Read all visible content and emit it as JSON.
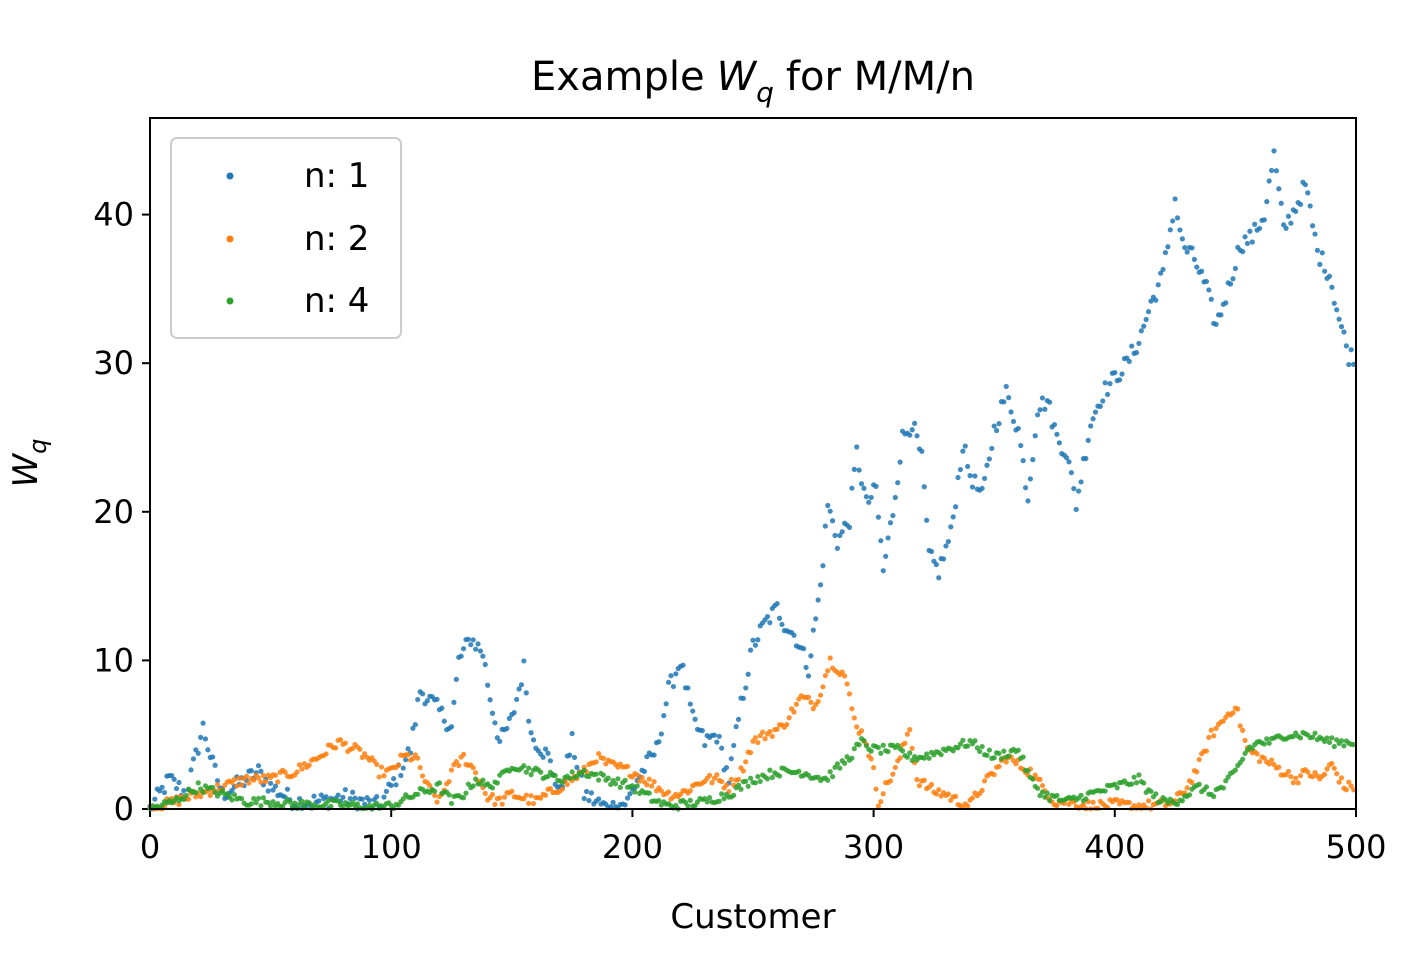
{
  "chart_data": {
    "type": "scatter",
    "title_prefix": "Example",
    "title_var": "W",
    "title_sub": "q",
    "title_suffix": "for M/M/n",
    "xlabel": "Customer",
    "ylabel_var": "W",
    "ylabel_sub": "q",
    "xlim": [
      0,
      500
    ],
    "ylim": [
      0,
      46.5
    ],
    "xticks": [
      0,
      100,
      200,
      300,
      400,
      500
    ],
    "yticks": [
      0,
      10,
      20,
      30,
      40
    ],
    "grid": false,
    "legend_position": "top-left",
    "series": [
      {
        "name": "n: 1",
        "color": "#1f77b4",
        "anchors": [
          [
            0,
            0
          ],
          [
            8,
            2
          ],
          [
            15,
            1
          ],
          [
            22,
            5.5
          ],
          [
            26,
            3
          ],
          [
            30,
            1
          ],
          [
            40,
            2
          ],
          [
            45,
            2.5
          ],
          [
            50,
            1.5
          ],
          [
            60,
            0.5
          ],
          [
            70,
            0.5
          ],
          [
            80,
            0.8
          ],
          [
            95,
            0.2
          ],
          [
            100,
            1.5
          ],
          [
            108,
            4
          ],
          [
            112,
            8
          ],
          [
            118,
            7
          ],
          [
            125,
            5.5
          ],
          [
            128,
            10
          ],
          [
            133,
            11.5
          ],
          [
            138,
            10.5
          ],
          [
            141,
            7.5
          ],
          [
            145,
            4.5
          ],
          [
            150,
            6
          ],
          [
            155,
            9.5
          ],
          [
            158,
            5
          ],
          [
            165,
            3.5
          ],
          [
            170,
            1
          ],
          [
            175,
            4.5
          ],
          [
            180,
            1
          ],
          [
            190,
            0
          ],
          [
            198,
            0.5
          ],
          [
            202,
            2
          ],
          [
            210,
            4
          ],
          [
            215,
            8
          ],
          [
            220,
            10
          ],
          [
            225,
            6
          ],
          [
            230,
            4.5
          ],
          [
            235,
            5
          ],
          [
            240,
            2
          ],
          [
            245,
            7
          ],
          [
            250,
            11
          ],
          [
            255,
            12.5
          ],
          [
            260,
            13.5
          ],
          [
            263,
            12.5
          ],
          [
            268,
            11.5
          ],
          [
            273,
            9.5
          ],
          [
            278,
            15
          ],
          [
            281,
            20.5
          ],
          [
            285,
            18
          ],
          [
            290,
            19.5
          ],
          [
            293,
            24
          ],
          [
            297,
            20.5
          ],
          [
            301,
            21.5
          ],
          [
            304,
            16
          ],
          [
            308,
            20
          ],
          [
            312,
            25
          ],
          [
            316,
            26
          ],
          [
            320,
            23.5
          ],
          [
            323,
            17
          ],
          [
            327,
            16
          ],
          [
            332,
            18.5
          ],
          [
            337,
            24.5
          ],
          [
            340,
            22.5
          ],
          [
            345,
            21
          ],
          [
            350,
            25.5
          ],
          [
            355,
            28
          ],
          [
            360,
            25.5
          ],
          [
            364,
            21
          ],
          [
            368,
            27
          ],
          [
            372,
            27.5
          ],
          [
            376,
            25
          ],
          [
            380,
            24
          ],
          [
            384,
            20.5
          ],
          [
            390,
            26
          ],
          [
            395,
            28
          ],
          [
            400,
            29
          ],
          [
            405,
            30
          ],
          [
            410,
            31.5
          ],
          [
            415,
            34
          ],
          [
            420,
            36
          ],
          [
            425,
            41
          ],
          [
            428,
            38
          ],
          [
            433,
            37
          ],
          [
            438,
            35
          ],
          [
            442,
            32.5
          ],
          [
            447,
            35
          ],
          [
            452,
            38
          ],
          [
            457,
            38.5
          ],
          [
            462,
            40
          ],
          [
            466,
            44
          ],
          [
            470,
            39
          ],
          [
            475,
            40.5
          ],
          [
            479,
            42
          ],
          [
            484,
            37.5
          ],
          [
            489,
            36
          ],
          [
            493,
            33
          ],
          [
            497,
            30.5
          ],
          [
            500,
            30.5
          ]
        ],
        "spread": 0.6
      },
      {
        "name": "n: 2",
        "color": "#ff7f0e",
        "anchors": [
          [
            0,
            0
          ],
          [
            10,
            0.5
          ],
          [
            20,
            1
          ],
          [
            30,
            1.5
          ],
          [
            40,
            2
          ],
          [
            50,
            2
          ],
          [
            60,
            2.5
          ],
          [
            70,
            3.5
          ],
          [
            78,
            4.5
          ],
          [
            85,
            4
          ],
          [
            90,
            3.5
          ],
          [
            95,
            2.5
          ],
          [
            100,
            2.5
          ],
          [
            105,
            3.5
          ],
          [
            110,
            3.5
          ],
          [
            115,
            1.5
          ],
          [
            120,
            0.5
          ],
          [
            125,
            2.5
          ],
          [
            130,
            3.5
          ],
          [
            135,
            2.5
          ],
          [
            140,
            0.8
          ],
          [
            145,
            0.5
          ],
          [
            150,
            1
          ],
          [
            160,
            0.5
          ],
          [
            170,
            1.5
          ],
          [
            180,
            2.5
          ],
          [
            185,
            3.5
          ],
          [
            190,
            3
          ],
          [
            200,
            2.5
          ],
          [
            205,
            2
          ],
          [
            210,
            1.5
          ],
          [
            215,
            1
          ],
          [
            220,
            1
          ],
          [
            225,
            1.5
          ],
          [
            230,
            2
          ],
          [
            235,
            2
          ],
          [
            240,
            1.5
          ],
          [
            245,
            2.5
          ],
          [
            250,
            4.5
          ],
          [
            255,
            5
          ],
          [
            262,
            5.5
          ],
          [
            270,
            7.5
          ],
          [
            276,
            7
          ],
          [
            282,
            10
          ],
          [
            288,
            9
          ],
          [
            292,
            6
          ],
          [
            297,
            4.5
          ],
          [
            300,
            2.5
          ],
          [
            302,
            0.5
          ],
          [
            305,
            1.5
          ],
          [
            310,
            3
          ],
          [
            315,
            5.5
          ],
          [
            318,
            2
          ],
          [
            325,
            1.2
          ],
          [
            330,
            1
          ],
          [
            335,
            0.5
          ],
          [
            340,
            0.3
          ],
          [
            345,
            1.5
          ],
          [
            350,
            2.5
          ],
          [
            355,
            3.5
          ],
          [
            360,
            3
          ],
          [
            365,
            2.5
          ],
          [
            370,
            1.5
          ],
          [
            375,
            0.5
          ],
          [
            380,
            0.5
          ],
          [
            390,
            0.2
          ],
          [
            400,
            0.3
          ],
          [
            410,
            0.2
          ],
          [
            420,
            0.3
          ],
          [
            425,
            0.5
          ],
          [
            430,
            1.5
          ],
          [
            435,
            3
          ],
          [
            440,
            5
          ],
          [
            445,
            6
          ],
          [
            450,
            7
          ],
          [
            455,
            4
          ],
          [
            460,
            3.5
          ],
          [
            465,
            3
          ],
          [
            470,
            2.5
          ],
          [
            475,
            2
          ],
          [
            480,
            2.5
          ],
          [
            485,
            2
          ],
          [
            490,
            3
          ],
          [
            495,
            1.5
          ],
          [
            500,
            1.5
          ]
        ],
        "spread": 0.35
      },
      {
        "name": "n: 4",
        "color": "#2ca02c",
        "anchors": [
          [
            0,
            0
          ],
          [
            10,
            0.5
          ],
          [
            20,
            1.5
          ],
          [
            30,
            1
          ],
          [
            40,
            0.5
          ],
          [
            50,
            0.5
          ],
          [
            60,
            0.3
          ],
          [
            70,
            0.3
          ],
          [
            80,
            0.3
          ],
          [
            90,
            0.1
          ],
          [
            100,
            0.2
          ],
          [
            110,
            1
          ],
          [
            120,
            1.5
          ],
          [
            125,
            0.5
          ],
          [
            130,
            1
          ],
          [
            135,
            2
          ],
          [
            140,
            1.5
          ],
          [
            145,
            2
          ],
          [
            150,
            3
          ],
          [
            160,
            2.5
          ],
          [
            170,
            2
          ],
          [
            180,
            2.5
          ],
          [
            190,
            2
          ],
          [
            200,
            1.5
          ],
          [
            205,
            1
          ],
          [
            210,
            0.5
          ],
          [
            215,
            0.2
          ],
          [
            220,
            0.3
          ],
          [
            230,
            0.5
          ],
          [
            240,
            1
          ],
          [
            250,
            2
          ],
          [
            260,
            2.5
          ],
          [
            270,
            2.5
          ],
          [
            280,
            2
          ],
          [
            290,
            3.5
          ],
          [
            295,
            4.5
          ],
          [
            300,
            4
          ],
          [
            310,
            4
          ],
          [
            315,
            3.5
          ],
          [
            320,
            3.5
          ],
          [
            330,
            4
          ],
          [
            340,
            4.5
          ],
          [
            350,
            3.5
          ],
          [
            360,
            4
          ],
          [
            365,
            2
          ],
          [
            370,
            1
          ],
          [
            380,
            0.5
          ],
          [
            390,
            1
          ],
          [
            400,
            1.5
          ],
          [
            410,
            2
          ],
          [
            415,
            1
          ],
          [
            420,
            0.5
          ],
          [
            425,
            0.5
          ],
          [
            430,
            1
          ],
          [
            435,
            1.5
          ],
          [
            440,
            1
          ],
          [
            445,
            1.5
          ],
          [
            450,
            2.5
          ],
          [
            455,
            4
          ],
          [
            460,
            4.5
          ],
          [
            465,
            4.5
          ],
          [
            470,
            5
          ],
          [
            480,
            5
          ],
          [
            490,
            4.5
          ],
          [
            500,
            4.5
          ]
        ],
        "spread": 0.3
      }
    ]
  }
}
